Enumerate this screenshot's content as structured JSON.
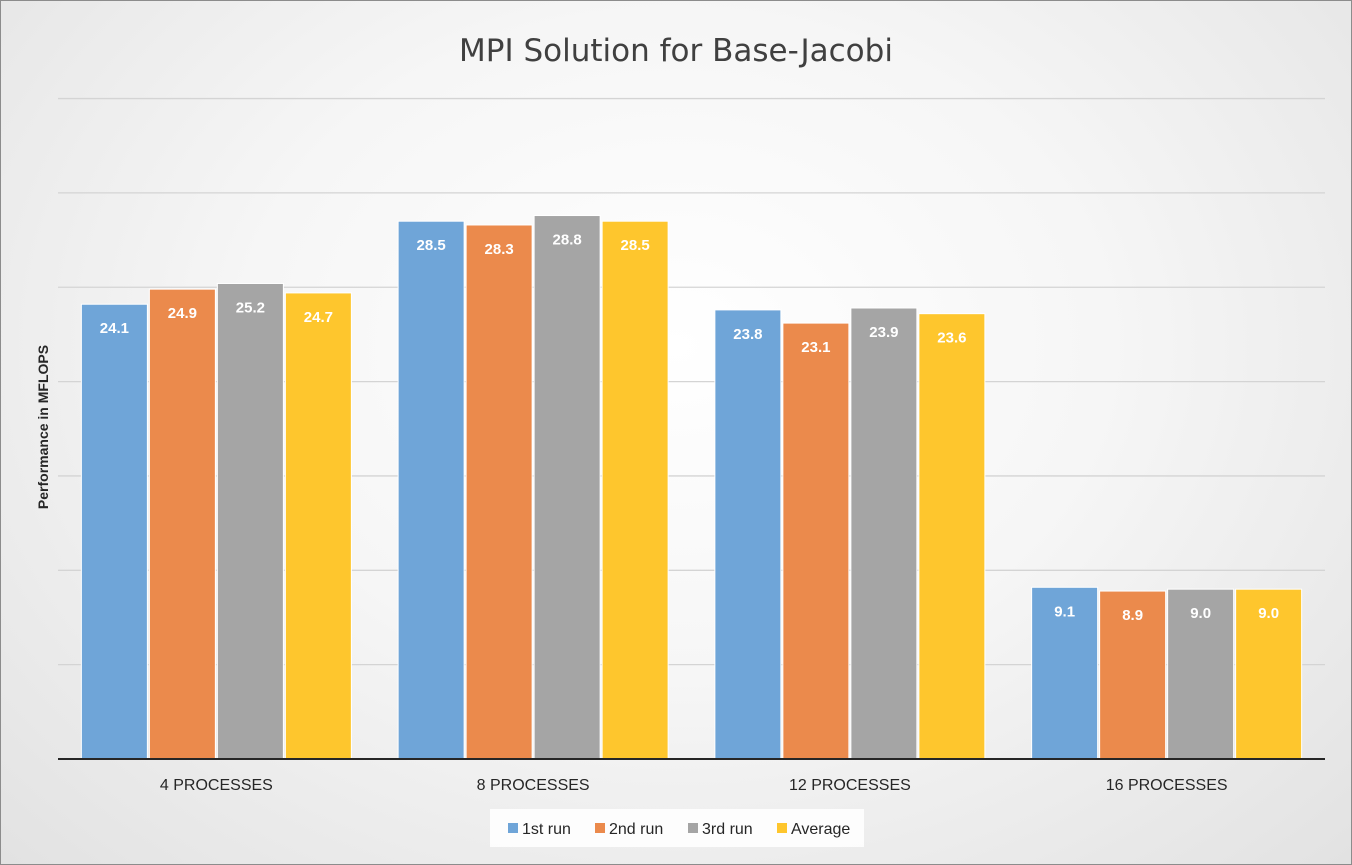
{
  "chart_data": {
    "type": "bar",
    "title": "MPI Solution for Base-Jacobi",
    "xlabel": "",
    "ylabel": "Performance in MFLOPS",
    "categories": [
      "4 PROCESSES",
      "8 PROCESSES",
      "12 PROCESSES",
      "16 PROCESSES"
    ],
    "series": [
      {
        "name": "1st run",
        "color": "#6fa5d8",
        "values": [
          24.1,
          28.5,
          23.8,
          9.1
        ],
        "labels": [
          "24.1",
          "28.5",
          "23.8",
          "9.1"
        ]
      },
      {
        "name": "2nd run",
        "color": "#eb8a4c",
        "values": [
          24.9,
          28.3,
          23.1,
          8.9
        ],
        "labels": [
          "24.9",
          "28.3",
          "23.1",
          "8.9"
        ]
      },
      {
        "name": "3rd run",
        "color": "#a5a5a5",
        "values": [
          25.2,
          28.8,
          23.9,
          9.0
        ],
        "labels": [
          "25.2",
          "28.8",
          "23.9",
          "9.0"
        ]
      },
      {
        "name": "Average",
        "color": "#fec62d",
        "values": [
          24.7,
          28.5,
          23.6,
          9.0
        ],
        "labels": [
          "24.7",
          "28.5",
          "23.6",
          "9.0"
        ]
      }
    ],
    "ylim": [
      0,
      35
    ],
    "y_gridlines": [
      5,
      10,
      15,
      20,
      25,
      30,
      35
    ],
    "y_tick_labels_shown": false,
    "grid": true,
    "data_labels": true,
    "legend_position": "bottom"
  }
}
